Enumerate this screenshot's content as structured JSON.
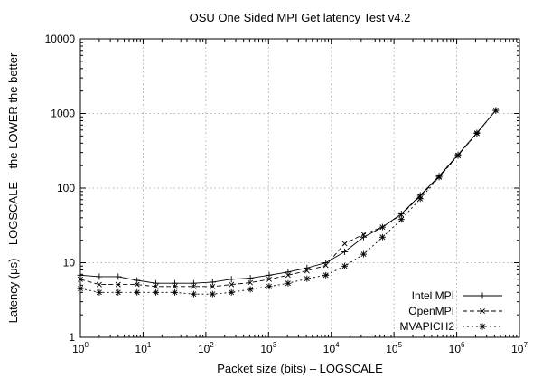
{
  "chart_data": {
    "type": "line",
    "title": "OSU One Sided MPI Get latency Test v4.2",
    "xlabel": "Packet size (bits) – LOGSCALE",
    "ylabel": "Latency (μs) – LOGSCALE – the LOWER the better",
    "xscale": "log",
    "yscale": "log",
    "xlim": [
      1,
      10000000
    ],
    "ylim": [
      1,
      10000
    ],
    "grid": true,
    "legend_position": "bottom-right",
    "x_ticks": [
      {
        "value": 1,
        "base": "10",
        "exp": "0"
      },
      {
        "value": 10,
        "base": "10",
        "exp": "1"
      },
      {
        "value": 100,
        "base": "10",
        "exp": "2"
      },
      {
        "value": 1000,
        "base": "10",
        "exp": "3"
      },
      {
        "value": 10000,
        "base": "10",
        "exp": "4"
      },
      {
        "value": 100000,
        "base": "10",
        "exp": "5"
      },
      {
        "value": 1000000,
        "base": "10",
        "exp": "6"
      },
      {
        "value": 10000000,
        "base": "10",
        "exp": "7"
      }
    ],
    "y_ticks": [
      {
        "value": 1,
        "label": "1"
      },
      {
        "value": 10,
        "label": "10"
      },
      {
        "value": 100,
        "label": "100"
      },
      {
        "value": 1000,
        "label": "1000"
      },
      {
        "value": 10000,
        "label": "10000"
      }
    ],
    "x": [
      1,
      2,
      4,
      8,
      16,
      32,
      64,
      128,
      256,
      512,
      1024,
      2048,
      4096,
      8192,
      16384,
      32768,
      65536,
      131072,
      262144,
      524288,
      1048576,
      2097152,
      4194304
    ],
    "series": [
      {
        "name": "Intel MPI",
        "marker": "plus",
        "dash": "",
        "values": [
          6.8,
          6.5,
          6.5,
          5.8,
          5.3,
          5.3,
          5.3,
          5.5,
          6.0,
          6.2,
          6.8,
          7.5,
          8.5,
          10.0,
          14.0,
          22.0,
          30.0,
          45.0,
          80.0,
          145.0,
          280.0,
          550.0,
          1100.0
        ]
      },
      {
        "name": "OpenMPI",
        "marker": "cross",
        "dash": "5 3",
        "values": [
          6.0,
          5.1,
          5.1,
          5.1,
          4.8,
          4.8,
          4.8,
          4.8,
          5.1,
          5.4,
          6.0,
          6.8,
          7.8,
          9.2,
          18.0,
          24.0,
          30.0,
          44.0,
          78.0,
          142.0,
          275.0,
          545.0,
          1100.0
        ]
      },
      {
        "name": "MVAPICH2",
        "marker": "star",
        "dash": "2 3",
        "values": [
          4.5,
          4.0,
          4.0,
          4.0,
          4.0,
          4.0,
          3.8,
          3.8,
          4.0,
          4.4,
          4.8,
          5.3,
          6.1,
          6.8,
          9.0,
          13.0,
          22.0,
          38.0,
          72.0,
          140.0,
          272.0,
          540.0,
          1100.0
        ]
      }
    ]
  }
}
